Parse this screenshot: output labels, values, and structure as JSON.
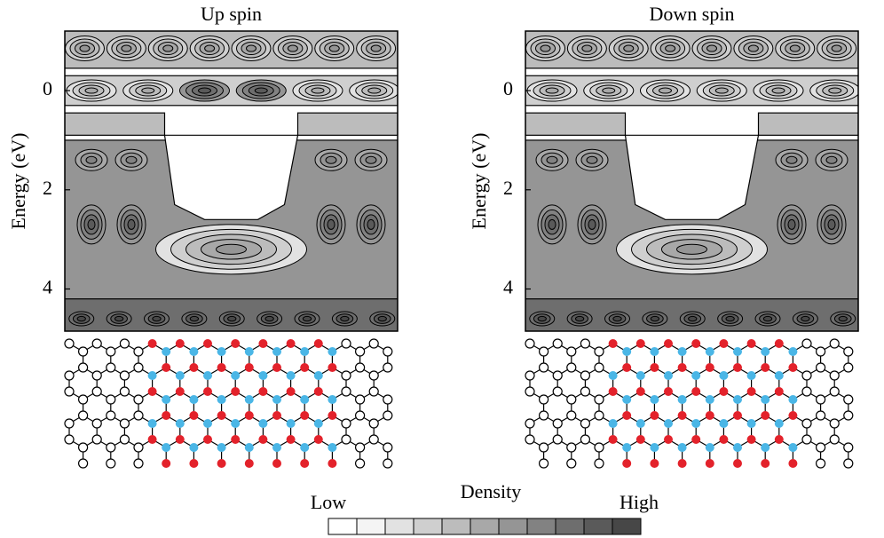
{
  "panels": [
    {
      "title": "Up spin",
      "y_label": "Energy (eV)",
      "ylim": [
        -1.2,
        4.85
      ],
      "y_ticks": [
        0,
        2,
        4
      ]
    },
    {
      "title": "Down spin",
      "y_label": "Energy (eV)",
      "ylim": [
        -1.2,
        4.85
      ],
      "y_ticks": [
        0,
        2,
        4
      ]
    }
  ],
  "colorbar": {
    "title": "Density",
    "low_label": "Low",
    "high_label": "High"
  }
}
